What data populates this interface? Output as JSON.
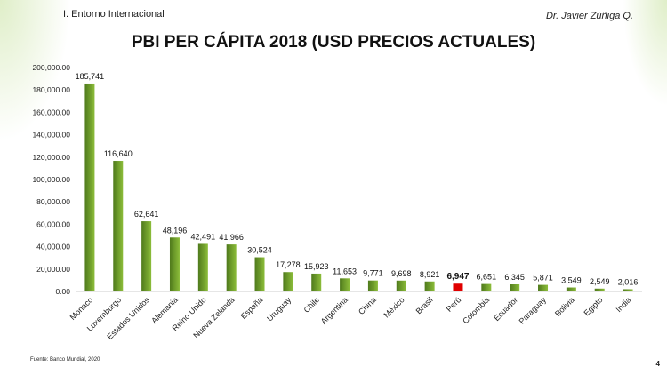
{
  "header": {
    "section": "I. Entorno Internacional",
    "author": "Dr. Javier Zúñiga Q."
  },
  "footer": {
    "source": "Fuente: Banco Mundial, 2020",
    "page": "4"
  },
  "colors": {
    "bar": "#6b9a2a",
    "highlight": "#e00000"
  },
  "chart_data": {
    "type": "bar",
    "title": "PBI PER CÁPITA 2018 (USD PRECIOS ACTUALES)",
    "xlabel": "",
    "ylabel": "",
    "ylim": [
      0,
      200000
    ],
    "yticks": [
      "0.00",
      "20,000.00",
      "40,000.00",
      "60,000.00",
      "80,000.00",
      "100,000.00",
      "120,000.00",
      "140,000.00",
      "160,000.00",
      "180,000.00",
      "200,000.00"
    ],
    "categories": [
      "Mónaco",
      "Luxemburgo",
      "Estados Unidos",
      "Alemania",
      "Reino Unido",
      "Nueva Zelanda",
      "España",
      "Uruguay",
      "Chile",
      "Argentina",
      "China",
      "México",
      "Brasil",
      "Perú",
      "Colombia",
      "Ecuador",
      "Paraguay",
      "Bolivia",
      "Egipto",
      "India"
    ],
    "values": [
      185741,
      116640,
      62641,
      48196,
      42491,
      41966,
      30524,
      17278,
      15923,
      11653,
      9771,
      9698,
      8921,
      6947,
      6651,
      6345,
      5871,
      3549,
      2549,
      2016
    ],
    "labels": [
      "185,741",
      "116,640",
      "62,641",
      "48,196",
      "42,491",
      "41,966",
      "30,524",
      "17,278",
      "15,923",
      "11,653",
      "9,771",
      "9,698",
      "8,921",
      "6,947",
      "6,651",
      "6,345",
      "5,871",
      "3,549",
      "2,549",
      "2,016"
    ],
    "highlight": "Perú"
  }
}
